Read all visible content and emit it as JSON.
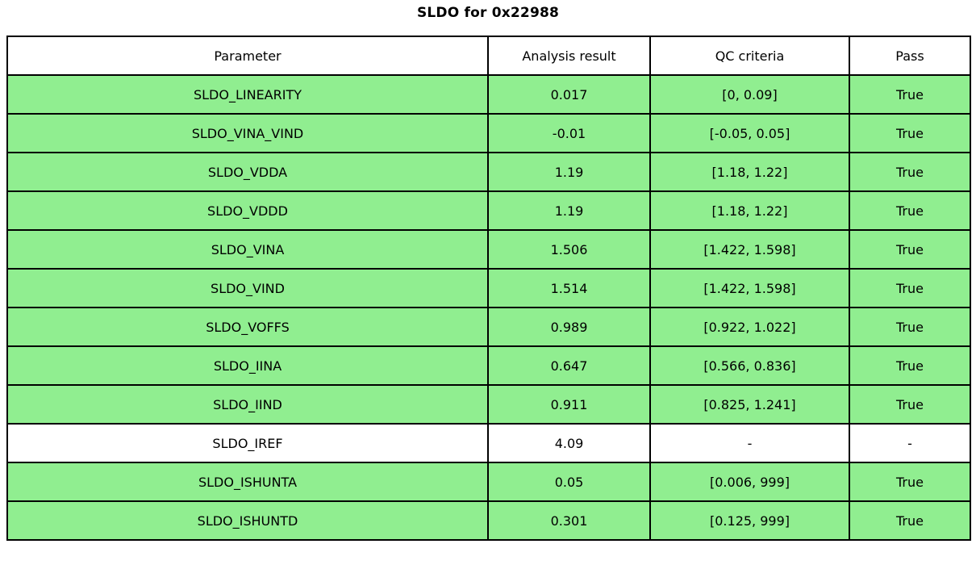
{
  "title": "SLDO for 0x22988",
  "colors": {
    "pass_row_green": "#90EE90",
    "neutral_row_white": "#ffffff",
    "border": "#000000",
    "text": "#000000"
  },
  "chart_data": {
    "type": "table",
    "title": "SLDO for 0x22988",
    "columns": [
      "Parameter",
      "Analysis result",
      "QC criteria",
      "Pass"
    ],
    "rows": [
      {
        "parameter": "SLDO_LINEARITY",
        "result": "0.017",
        "criteria": "[0, 0.09]",
        "pass": "True",
        "highlight": true
      },
      {
        "parameter": "SLDO_VINA_VIND",
        "result": "-0.01",
        "criteria": "[-0.05, 0.05]",
        "pass": "True",
        "highlight": true
      },
      {
        "parameter": "SLDO_VDDA",
        "result": "1.19",
        "criteria": "[1.18, 1.22]",
        "pass": "True",
        "highlight": true
      },
      {
        "parameter": "SLDO_VDDD",
        "result": "1.19",
        "criteria": "[1.18, 1.22]",
        "pass": "True",
        "highlight": true
      },
      {
        "parameter": "SLDO_VINA",
        "result": "1.506",
        "criteria": "[1.422, 1.598]",
        "pass": "True",
        "highlight": true
      },
      {
        "parameter": "SLDO_VIND",
        "result": "1.514",
        "criteria": "[1.422, 1.598]",
        "pass": "True",
        "highlight": true
      },
      {
        "parameter": "SLDO_VOFFS",
        "result": "0.989",
        "criteria": "[0.922, 1.022]",
        "pass": "True",
        "highlight": true
      },
      {
        "parameter": "SLDO_IINA",
        "result": "0.647",
        "criteria": "[0.566, 0.836]",
        "pass": "True",
        "highlight": true
      },
      {
        "parameter": "SLDO_IIND",
        "result": "0.911",
        "criteria": "[0.825, 1.241]",
        "pass": "True",
        "highlight": true
      },
      {
        "parameter": "SLDO_IREF",
        "result": "4.09",
        "criteria": "-",
        "pass": "-",
        "highlight": false
      },
      {
        "parameter": "SLDO_ISHUNTA",
        "result": "0.05",
        "criteria": "[0.006, 999]",
        "pass": "True",
        "highlight": true
      },
      {
        "parameter": "SLDO_ISHUNTD",
        "result": "0.301",
        "criteria": "[0.125, 999]",
        "pass": "True",
        "highlight": true
      }
    ]
  }
}
